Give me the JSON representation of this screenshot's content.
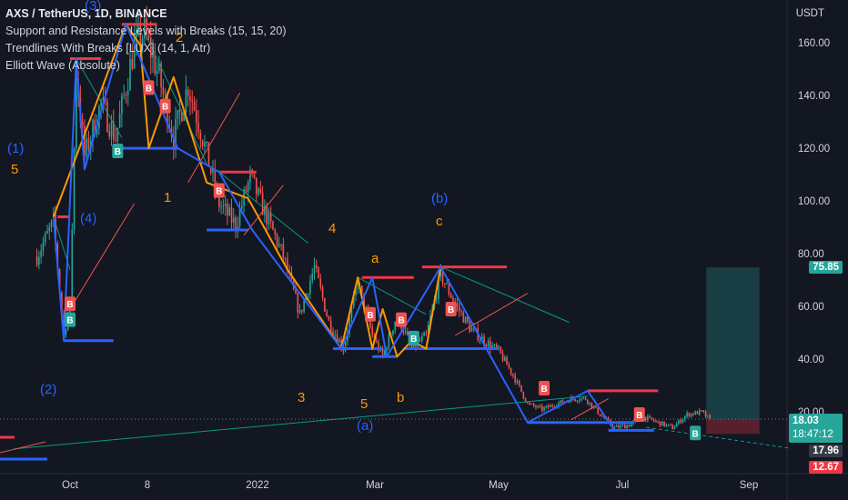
{
  "title": "AXS / TetherUS, 1D, BINANCE",
  "indicators": [
    "Support and Resistance Levels with Breaks (15, 15, 20)",
    "Trendlines With Breaks [LUX] (14, 1, Atr)",
    "Elliott Wave (Absolute)"
  ],
  "currency": "USDT",
  "y_ticks": [
    "160.00",
    "140.00",
    "120.00",
    "100.00",
    "80.00",
    "60.00",
    "40.00",
    "20.00"
  ],
  "x_ticks": [
    "Oct",
    "8",
    "2022",
    "Mar",
    "May",
    "Jul",
    "Sep"
  ],
  "price_tags": {
    "target": "75.85",
    "last": "18.03",
    "countdown": "18:47:12",
    "level_a": "17.96",
    "level_b": "12.67"
  },
  "break_label": "B",
  "wave_labels": {
    "blue": [
      "(3)",
      "(1)",
      "(4)",
      "(2)",
      "(b)",
      "(a)"
    ],
    "orange": [
      "2",
      "5",
      "1",
      "4",
      "a",
      "c",
      "3",
      "5",
      "b"
    ]
  },
  "colors": {
    "background": "#131722",
    "up": "#26a69a",
    "down": "#ef5350",
    "resistance": "#f23645",
    "support": "#2962ff",
    "wave": "#ff9800",
    "trend": "#089981"
  },
  "chart_data": {
    "type": "candlestick",
    "symbol": "AXS / TetherUS",
    "interval": "1D",
    "exchange": "BINANCE",
    "ylim": [
      0,
      170
    ],
    "y_ticks": [
      160,
      140,
      120,
      100,
      80,
      60,
      40,
      20
    ],
    "x_ticks": [
      "Oct",
      "8",
      "2022",
      "Mar",
      "May",
      "Jul",
      "Sep"
    ],
    "price_path": [
      [
        "Sep 15",
        80
      ],
      [
        "Sep 23",
        93
      ],
      [
        "Sep 28",
        50
      ],
      [
        "Oct 1",
        62
      ],
      [
        "Oct 4",
        150
      ],
      [
        "Oct 8",
        118
      ],
      [
        "Oct 16",
        138
      ],
      [
        "Oct 23",
        125
      ],
      [
        "Nov 1",
        160
      ],
      [
        "Nov 6",
        165
      ],
      [
        "Nov 13",
        148
      ],
      [
        "Nov 20",
        125
      ],
      [
        "Nov 27",
        145
      ],
      [
        "Dec 4",
        125
      ],
      [
        "Dec 12",
        100
      ],
      [
        "Dec 20",
        92
      ],
      [
        "Dec 27",
        110
      ],
      [
        "Jan 4",
        95
      ],
      [
        "Jan 12",
        80
      ],
      [
        "Jan 20",
        58
      ],
      [
        "Jan 27",
        76
      ],
      [
        "Feb 3",
        55
      ],
      [
        "Feb 10",
        45
      ],
      [
        "Feb 17",
        70
      ],
      [
        "Feb 24",
        50
      ],
      [
        "Mar 1",
        42
      ],
      [
        "Mar 8",
        58
      ],
      [
        "Mar 15",
        45
      ],
      [
        "Mar 22",
        50
      ],
      [
        "Mar 29",
        73
      ],
      [
        "Apr 5",
        62
      ],
      [
        "Apr 12",
        53
      ],
      [
        "Apr 19",
        48
      ],
      [
        "Apr 26",
        44
      ],
      [
        "May 3",
        35
      ],
      [
        "May 10",
        24
      ],
      [
        "May 17",
        22
      ],
      [
        "May 24",
        24
      ],
      [
        "May 31",
        26
      ],
      [
        "Jun 7",
        26
      ],
      [
        "Jun 14",
        20
      ],
      [
        "Jun 21",
        15
      ],
      [
        "Jun 28",
        16
      ],
      [
        "Jul 5",
        19
      ],
      [
        "Jul 12",
        17
      ],
      [
        "Jul 19",
        15
      ],
      [
        "Jul 26",
        20
      ],
      [
        "Aug 2",
        21
      ],
      [
        "Aug 6",
        18
      ]
    ],
    "resistance_levels": [
      {
        "from": "Sep 25",
        "to": "Oct 1",
        "value": 95
      },
      {
        "from": "Oct 1",
        "to": "Oct 16",
        "value": 155
      },
      {
        "from": "Oct 26",
        "to": "Nov 12",
        "value": 168
      },
      {
        "from": "Dec 12",
        "to": "Dec 30",
        "value": 112
      },
      {
        "from": "Feb 19",
        "to": "Mar 16",
        "value": 72
      },
      {
        "from": "Mar 20",
        "to": "Apr 30",
        "value": 76
      },
      {
        "from": "Jun 8",
        "to": "Jul 12",
        "value": 29
      }
    ],
    "support_levels": [
      {
        "from": "Sep 28",
        "to": "Oct 22",
        "value": 48
      },
      {
        "from": "Oct 26",
        "to": "Nov 22",
        "value": 121
      },
      {
        "from": "Dec 6",
        "to": "Dec 26",
        "value": 90
      },
      {
        "from": "Feb 5",
        "to": "Mar 1",
        "value": 45
      },
      {
        "from": "Feb 24",
        "to": "Mar 8",
        "value": 42
      },
      {
        "from": "Mar 11",
        "to": "Apr 26",
        "value": 45
      },
      {
        "from": "May 10",
        "to": "Jun 30",
        "value": 17
      },
      {
        "from": "Jun 18",
        "to": "Jul 10",
        "value": 14
      }
    ],
    "elliott_wave_blue": [
      [
        "Sep 23",
        95
      ],
      [
        "Sep 28",
        48
      ],
      [
        "Oct 4",
        155
      ],
      [
        "Oct 8",
        113
      ],
      [
        "Oct 28",
        168
      ],
      [
        "Nov 22",
        121
      ],
      [
        "Dec 12",
        112
      ],
      [
        "Dec 28",
        90
      ],
      [
        "Feb 9",
        45
      ],
      [
        "Feb 24",
        72
      ],
      [
        "Mar 3",
        42
      ],
      [
        "Mar 29",
        76
      ],
      [
        "May 10",
        17
      ],
      [
        "Jun 8",
        29
      ],
      [
        "Jun 21",
        14
      ]
    ],
    "elliott_wave_orange": [
      [
        "Sep 23",
        95
      ],
      [
        "Oct 28",
        168
      ],
      [
        "Nov 4",
        160
      ],
      [
        "Nov 8",
        121
      ],
      [
        "Nov 20",
        148
      ],
      [
        "Dec 6",
        108
      ],
      [
        "Dec 26",
        102
      ],
      [
        "Jan 14",
        75
      ],
      [
        "Feb 9",
        45
      ],
      [
        "Feb 17",
        72
      ],
      [
        "Feb 24",
        45
      ],
      [
        "Mar 1",
        60
      ],
      [
        "Mar 8",
        42
      ],
      [
        "Mar 15",
        48
      ],
      [
        "Mar 22",
        45
      ],
      [
        "Mar 29",
        76
      ]
    ],
    "position_box": {
      "from": "Aug 10",
      "to": "Aug 30",
      "target": 75.85,
      "entry": 18.03,
      "stop": 12.67
    },
    "last_price": 18.03,
    "legend": "top-left",
    "grid": false
  }
}
